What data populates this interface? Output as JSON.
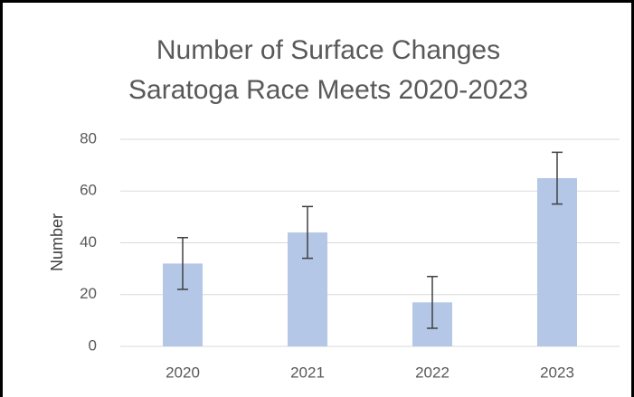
{
  "chart_data": {
    "type": "bar",
    "title": "Number of Surface Changes",
    "subtitle": "Saratoga Race Meets 2020-2023",
    "y_label": "Number",
    "categories": [
      "2020",
      "2021",
      "2022",
      "2023"
    ],
    "values": [
      32,
      44,
      17,
      65
    ],
    "errors": [
      10,
      10,
      10,
      10
    ],
    "color": "#b4c7e7",
    "ylim": [
      0,
      80
    ],
    "yticks": [
      0,
      20,
      40,
      60,
      80
    ],
    "grid": true
  }
}
